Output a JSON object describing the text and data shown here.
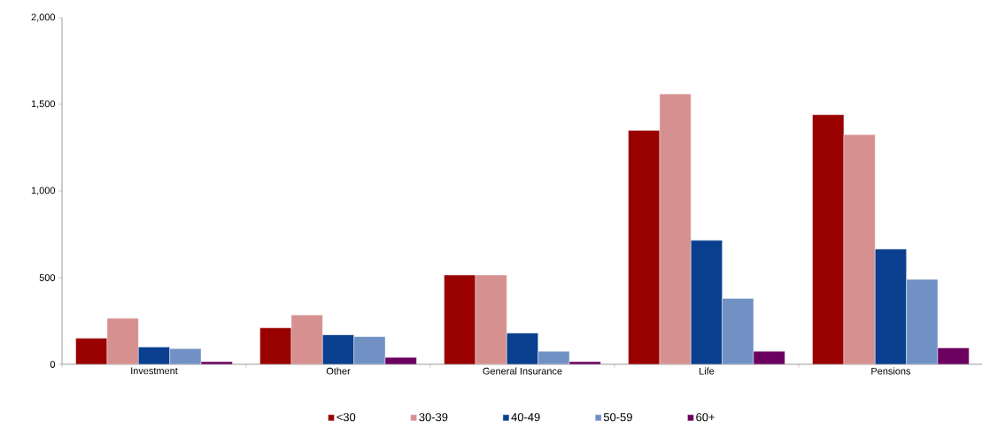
{
  "chart_data": {
    "type": "bar",
    "categories": [
      "Investment",
      "Other",
      "General Insurance",
      "Life",
      "Pensions"
    ],
    "series": [
      {
        "name": "<30",
        "color": "#990000",
        "values": [
          150,
          210,
          515,
          1350,
          1440
        ]
      },
      {
        "name": "30-39",
        "color": "#d69090",
        "values": [
          265,
          285,
          515,
          1560,
          1325
        ]
      },
      {
        "name": "40-49",
        "color": "#0a3f8f",
        "values": [
          100,
          170,
          180,
          715,
          665
        ]
      },
      {
        "name": "50-59",
        "color": "#7191c4",
        "values": [
          90,
          160,
          75,
          380,
          490
        ]
      },
      {
        "name": "60+",
        "color": "#6b005f",
        "values": [
          15,
          40,
          15,
          75,
          95
        ]
      }
    ],
    "ylim": [
      0,
      2000
    ],
    "yticks": [
      0,
      {
        "value": 500,
        "label": "500"
      },
      {
        "value": 1000,
        "label": "1,000"
      },
      {
        "value": 1500,
        "label": "1,500"
      },
      {
        "value": 2000,
        "label": "2,000"
      }
    ],
    "grid": false,
    "legend": "bottom"
  }
}
